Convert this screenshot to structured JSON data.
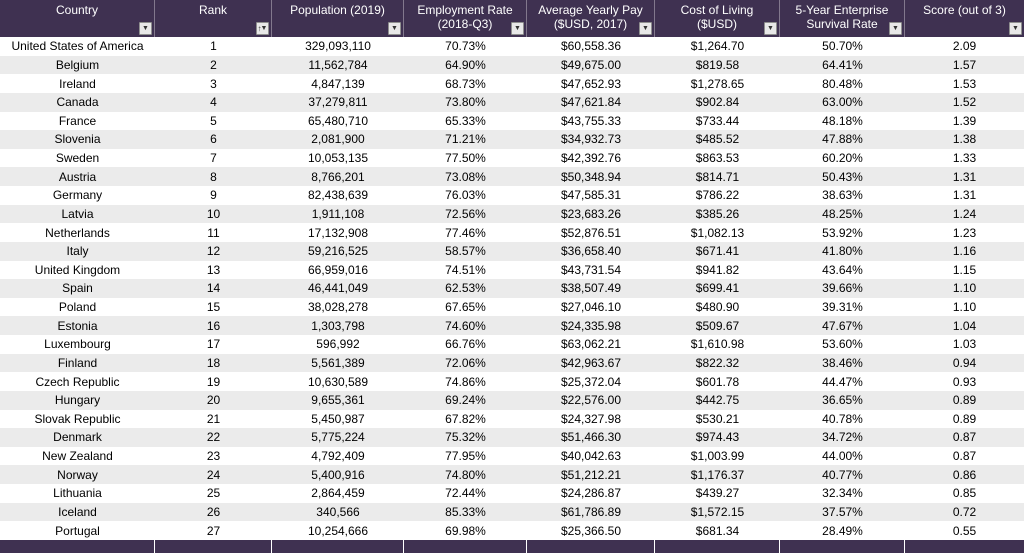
{
  "colors": {
    "header_bg": "#3F3151",
    "footer_bg": "#3F3151",
    "row_alt_bg": "#EBEBEB",
    "row_bg": "#FFFFFF",
    "header_text": "#FFFFFF",
    "body_text": "#000000"
  },
  "icons": {
    "filter_dropdown_glyph": "▼",
    "sort_ascending_glyph": "↑"
  },
  "table": {
    "columns": [
      {
        "id": "country",
        "label": "Country",
        "label2": "",
        "sorted": false
      },
      {
        "id": "rank",
        "label": "Rank",
        "label2": "",
        "sorted": true
      },
      {
        "id": "population",
        "label": "Population (2019)",
        "label2": "",
        "sorted": false
      },
      {
        "id": "employment",
        "label": "Employment Rate",
        "label2": "(2018-Q3)",
        "sorted": false
      },
      {
        "id": "pay",
        "label": "Average Yearly Pay",
        "label2": "($USD, 2017)",
        "sorted": false
      },
      {
        "id": "cost",
        "label": "Cost of Living",
        "label2": "($USD)",
        "sorted": false
      },
      {
        "id": "survival",
        "label": "5-Year Enterprise",
        "label2": "Survival Rate",
        "sorted": false
      },
      {
        "id": "score",
        "label": "Score (out of 3)",
        "label2": "",
        "sorted": false
      }
    ],
    "rows": [
      [
        "United States of America",
        "1",
        "329,093,110",
        "70.73%",
        "$60,558.36",
        "$1,264.70",
        "50.70%",
        "2.09"
      ],
      [
        "Belgium",
        "2",
        "11,562,784",
        "64.90%",
        "$49,675.00",
        "$819.58",
        "64.41%",
        "1.57"
      ],
      [
        "Ireland",
        "3",
        "4,847,139",
        "68.73%",
        "$47,652.93",
        "$1,278.65",
        "80.48%",
        "1.53"
      ],
      [
        "Canada",
        "4",
        "37,279,811",
        "73.80%",
        "$47,621.84",
        "$902.84",
        "63.00%",
        "1.52"
      ],
      [
        "France",
        "5",
        "65,480,710",
        "65.33%",
        "$43,755.33",
        "$733.44",
        "48.18%",
        "1.39"
      ],
      [
        "Slovenia",
        "6",
        "2,081,900",
        "71.21%",
        "$34,932.73",
        "$485.52",
        "47.88%",
        "1.38"
      ],
      [
        "Sweden",
        "7",
        "10,053,135",
        "77.50%",
        "$42,392.76",
        "$863.53",
        "60.20%",
        "1.33"
      ],
      [
        "Austria",
        "8",
        "8,766,201",
        "73.08%",
        "$50,348.94",
        "$814.71",
        "50.43%",
        "1.31"
      ],
      [
        "Germany",
        "9",
        "82,438,639",
        "76.03%",
        "$47,585.31",
        "$786.22",
        "38.63%",
        "1.31"
      ],
      [
        "Latvia",
        "10",
        "1,911,108",
        "72.56%",
        "$23,683.26",
        "$385.26",
        "48.25%",
        "1.24"
      ],
      [
        "Netherlands",
        "11",
        "17,132,908",
        "77.46%",
        "$52,876.51",
        "$1,082.13",
        "53.92%",
        "1.23"
      ],
      [
        "Italy",
        "12",
        "59,216,525",
        "58.57%",
        "$36,658.40",
        "$671.41",
        "41.80%",
        "1.16"
      ],
      [
        "United Kingdom",
        "13",
        "66,959,016",
        "74.51%",
        "$43,731.54",
        "$941.82",
        "43.64%",
        "1.15"
      ],
      [
        "Spain",
        "14",
        "46,441,049",
        "62.53%",
        "$38,507.49",
        "$699.41",
        "39.66%",
        "1.10"
      ],
      [
        "Poland",
        "15",
        "38,028,278",
        "67.65%",
        "$27,046.10",
        "$480.90",
        "39.31%",
        "1.10"
      ],
      [
        "Estonia",
        "16",
        "1,303,798",
        "74.60%",
        "$24,335.98",
        "$509.67",
        "47.67%",
        "1.04"
      ],
      [
        "Luxembourg",
        "17",
        "596,992",
        "66.76%",
        "$63,062.21",
        "$1,610.98",
        "53.60%",
        "1.03"
      ],
      [
        "Finland",
        "18",
        "5,561,389",
        "72.06%",
        "$42,963.67",
        "$822.32",
        "38.46%",
        "0.94"
      ],
      [
        "Czech Republic",
        "19",
        "10,630,589",
        "74.86%",
        "$25,372.04",
        "$601.78",
        "44.47%",
        "0.93"
      ],
      [
        "Hungary",
        "20",
        "9,655,361",
        "69.24%",
        "$22,576.00",
        "$442.75",
        "36.65%",
        "0.89"
      ],
      [
        "Slovak Republic",
        "21",
        "5,450,987",
        "67.82%",
        "$24,327.98",
        "$530.21",
        "40.78%",
        "0.89"
      ],
      [
        "Denmark",
        "22",
        "5,775,224",
        "75.32%",
        "$51,466.30",
        "$974.43",
        "34.72%",
        "0.87"
      ],
      [
        "New Zealand",
        "23",
        "4,792,409",
        "77.95%",
        "$40,042.63",
        "$1,003.99",
        "44.00%",
        "0.87"
      ],
      [
        "Norway",
        "24",
        "5,400,916",
        "74.80%",
        "$51,212.21",
        "$1,176.37",
        "40.77%",
        "0.86"
      ],
      [
        "Lithuania",
        "25",
        "2,864,459",
        "72.44%",
        "$24,286.87",
        "$439.27",
        "32.34%",
        "0.85"
      ],
      [
        "Iceland",
        "26",
        "340,566",
        "85.33%",
        "$61,786.89",
        "$1,572.15",
        "37.57%",
        "0.72"
      ],
      [
        "Portugal",
        "27",
        "10,254,666",
        "69.98%",
        "$25,366.50",
        "$681.34",
        "28.49%",
        "0.55"
      ]
    ]
  }
}
